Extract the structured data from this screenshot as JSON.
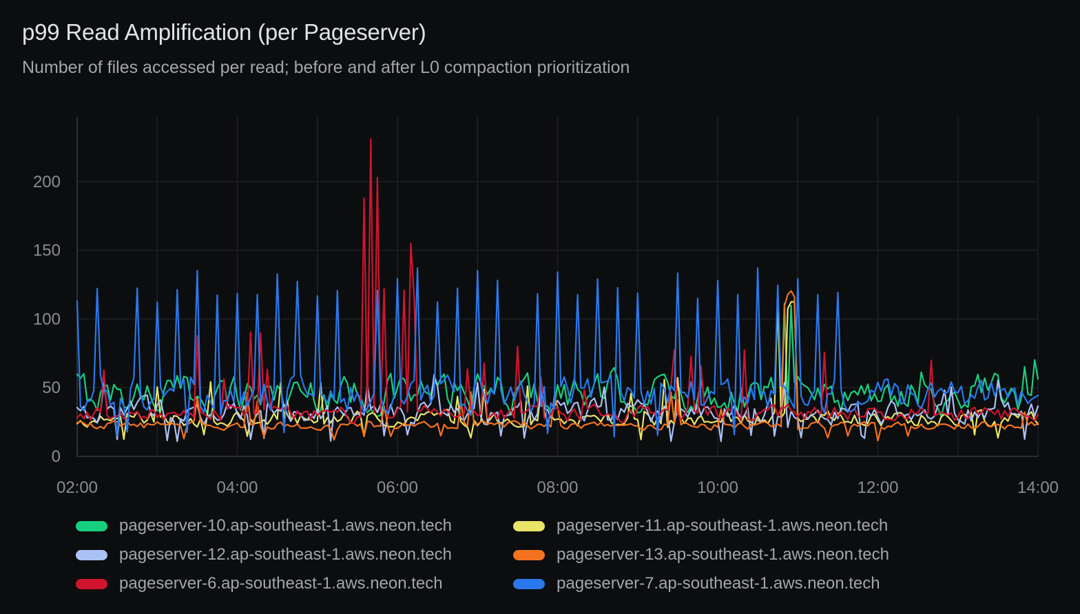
{
  "colors": {
    "background": "#0c0d0f",
    "title_text": "#e2e3e7",
    "subtitle_text": "#a2a5ac",
    "axis_text": "#8a8d94",
    "grid_line": "#1f2126",
    "axis_border": "#34373c"
  },
  "chart_data": {
    "type": "line",
    "title": "p99 Read Amplification (per Pageserver)",
    "subtitle": "Number of files accessed per read; before and after L0 compaction prioritization",
    "legend_position": "bottom",
    "grid": true,
    "sample_minutes": 2.5,
    "x_axis": {
      "start": "02:00",
      "end": "14:00",
      "tick_labels": [
        "02:00",
        "04:00",
        "06:00",
        "08:00",
        "10:00",
        "12:00",
        "14:00"
      ],
      "hour_gridlines": true
    },
    "y_axis": {
      "ticks": [
        0,
        50,
        100,
        150,
        200
      ],
      "min": 0,
      "max": 247
    },
    "series": [
      {
        "label": "pageserver-10.ap-southeast-1.aws.neon.tech",
        "color": "#17d07f",
        "base": {
          "min": 24,
          "max": 68
        },
        "spikes": [
          {
            "from": "10:40",
            "to": "11:00",
            "prob": 0.38,
            "min": 108,
            "max": 124
          },
          {
            "from": "12:00",
            "to": "14:00",
            "prob": 0.05,
            "min": 58,
            "max": 72
          }
        ],
        "events": []
      },
      {
        "label": "pageserver-11.ap-southeast-1.aws.neon.tech",
        "color": "#e9e566",
        "base": {
          "min": 19,
          "max": 36
        },
        "spikes": [
          {
            "from": "02:00",
            "to": "11:30",
            "prob": 0.05,
            "min": 40,
            "max": 58
          },
          {
            "from": "10:45",
            "to": "11:00",
            "prob": 0.45,
            "min": 105,
            "max": 126
          }
        ],
        "dips": {
          "prob": 0.03,
          "min": 12,
          "max": 16
        },
        "events": []
      },
      {
        "label": "pageserver-12.ap-southeast-1.aws.neon.tech",
        "color": "#aac1f3",
        "base": {
          "min": 19,
          "max": 46
        },
        "spikes": [
          {
            "from": "02:00",
            "to": "14:00",
            "prob": 0.04,
            "min": 48,
            "max": 62
          }
        ],
        "dips": {
          "prob": 0.06,
          "min": 10,
          "max": 16
        },
        "events": []
      },
      {
        "label": "pageserver-13.ap-southeast-1.aws.neon.tech",
        "color": "#f4721d",
        "base": {
          "min": 18,
          "max": 27
        },
        "spikes": [
          {
            "from": "02:00",
            "to": "14:00",
            "prob": 0.06,
            "min": 32,
            "max": 48
          },
          {
            "from": "10:48",
            "to": "11:03",
            "prob": 0.45,
            "min": 98,
            "max": 122
          }
        ],
        "dips": {
          "prob": 0.03,
          "min": 11,
          "max": 15
        },
        "events": []
      },
      {
        "label": "pageserver-6.ap-southeast-1.aws.neon.tech",
        "color": "#d0142e",
        "base": {
          "min": 22,
          "max": 40
        },
        "spikes": [
          {
            "from": "02:05",
            "to": "04:40",
            "prob": 0.12,
            "min": 55,
            "max": 105
          },
          {
            "from": "06:25",
            "to": "10:40",
            "prob": 0.035,
            "min": 48,
            "max": 78
          },
          {
            "from": "10:55",
            "to": "11:20",
            "prob": 0.15,
            "min": 58,
            "max": 100
          }
        ],
        "events": [
          {
            "t": "05:36",
            "v": 188
          },
          {
            "t": "05:41",
            "v": 231
          },
          {
            "t": "05:44",
            "v": 203
          },
          {
            "t": "05:49",
            "v": 122
          },
          {
            "t": "06:04",
            "v": 121
          },
          {
            "t": "06:09",
            "v": 155
          },
          {
            "t": "06:12",
            "v": 117
          },
          {
            "t": "07:29",
            "v": 80
          },
          {
            "t": "12:40",
            "v": 70
          }
        ]
      },
      {
        "label": "pageserver-7.ap-southeast-1.aws.neon.tech",
        "color": "#2979ec",
        "base": {
          "min": 26,
          "max": 64
        },
        "periodic_spikes": {
          "period_min": 15,
          "until": "11:38",
          "min": 112,
          "max": 137,
          "skip_prob": 0.12
        },
        "dips": {
          "prob": 0.02,
          "min": 14,
          "max": 18
        },
        "events": []
      }
    ]
  }
}
